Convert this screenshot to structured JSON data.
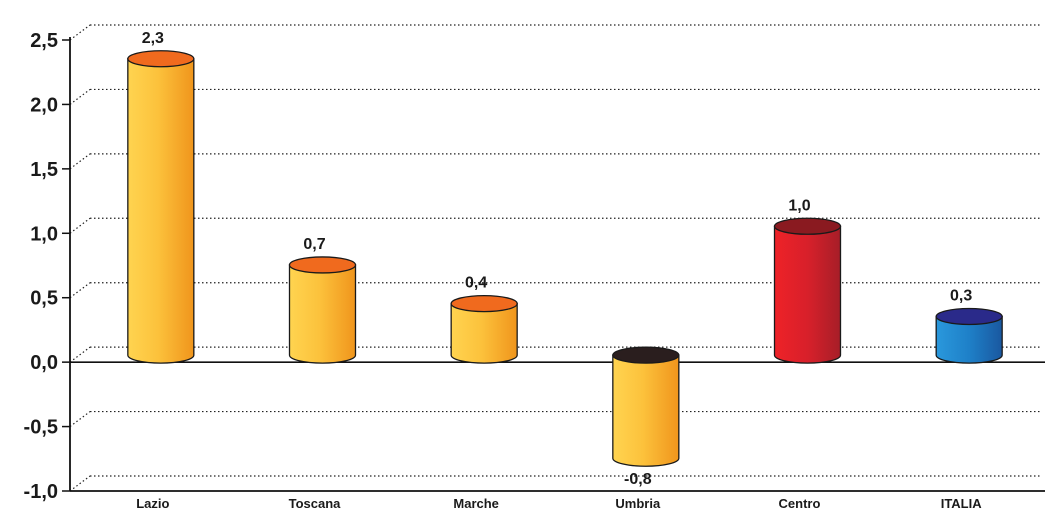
{
  "chart_data": {
    "type": "bar",
    "style": "3d-cylinder",
    "title": "",
    "xlabel": "",
    "ylabel": "",
    "categories": [
      "Lazio",
      "Toscana",
      "Marche",
      "Umbria",
      "Centro",
      "ITALIA"
    ],
    "values": [
      2.3,
      0.7,
      0.4,
      -0.8,
      1.0,
      0.3
    ],
    "value_labels": [
      "2,3",
      "0,7",
      "0,4",
      "-0,8",
      "1,0",
      "0,3"
    ],
    "ylim": [
      -1.0,
      2.5
    ],
    "yticks": [
      {
        "value": 2.5,
        "label": "2,5"
      },
      {
        "value": 2.0,
        "label": "2,0"
      },
      {
        "value": 1.5,
        "label": "1,5"
      },
      {
        "value": 1.0,
        "label": "1,0"
      },
      {
        "value": 0.5,
        "label": "0,5"
      },
      {
        "value": 0.0,
        "label": "0,0"
      },
      {
        "value": -0.5,
        "label": "-0,5"
      },
      {
        "value": -1.0,
        "label": "-1,0"
      }
    ],
    "grid": "dotted horizontal",
    "legend": "none",
    "colors": {
      "body_light": "#ffd04a",
      "body_dark": "#f39a1e",
      "cap_default": "#f06a1e",
      "cap_negative": "#2a1e1e",
      "centro_light": "#e8202a",
      "centro_dark": "#a8202a",
      "centro_cap": "#8a1a20",
      "italia_light": "#1e8ad0",
      "italia_dark": "#1a5fa8",
      "italia_cap": "#2a2a8a"
    },
    "bar_styles": [
      "default",
      "default",
      "default",
      "negative",
      "centro",
      "italia"
    ]
  }
}
